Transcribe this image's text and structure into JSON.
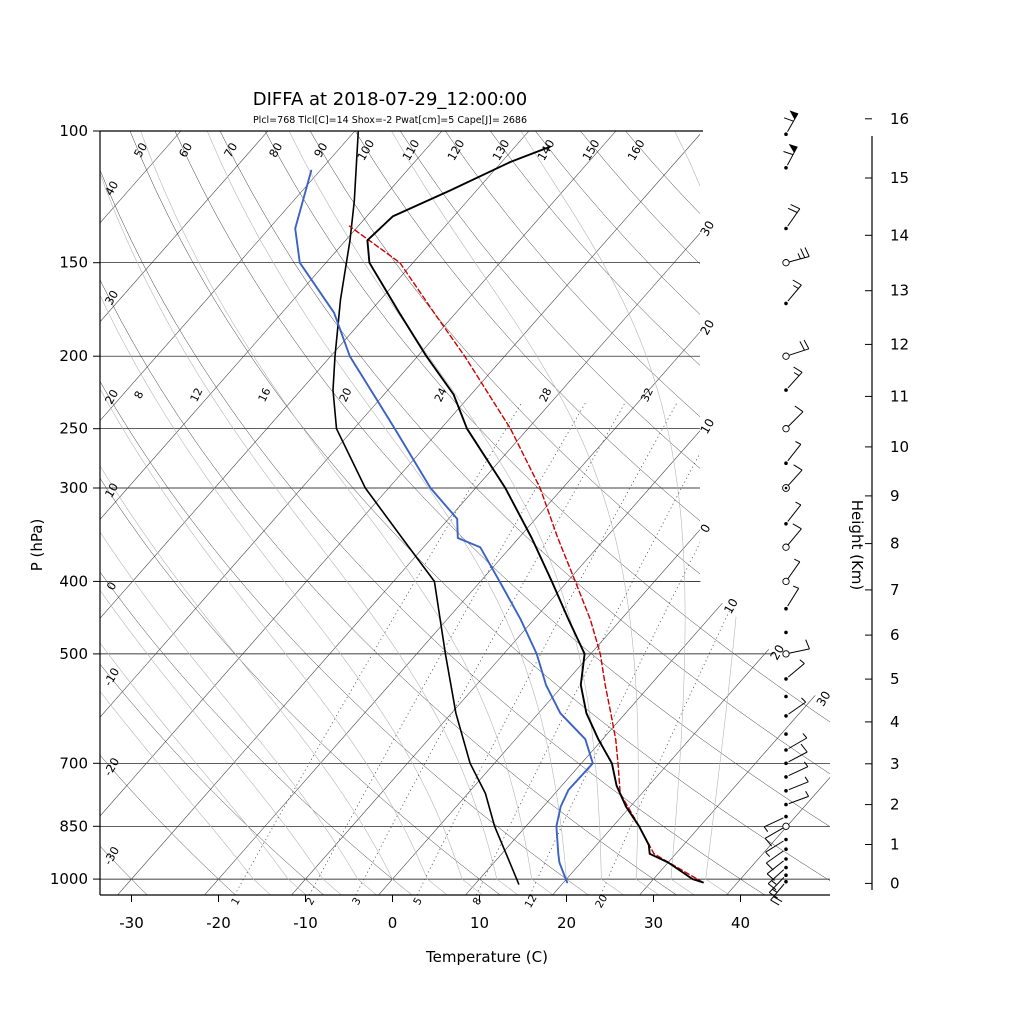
{
  "title": "DIFFA at 2018-07-29_12:00:00",
  "subtitle": "Plcl=768 Tlcl[C]=14 Shox=-2 Pwat[cm]=5 Cape[J]= 2686",
  "axes": {
    "pressure_label": "P (hPa)",
    "temperature_label": "Temperature (C)",
    "height_label": "Height (Km)",
    "pressure_ticks": [
      100,
      150,
      200,
      250,
      300,
      400,
      500,
      700,
      850,
      1000
    ],
    "temperature_ticks": [
      -30,
      -20,
      -10,
      0,
      10,
      20,
      30,
      40
    ],
    "height_ticks": [
      0,
      1,
      2,
      3,
      4,
      5,
      6,
      7,
      8,
      9,
      10,
      11,
      12,
      13,
      14,
      15,
      16
    ]
  },
  "grid": {
    "dry_adiabat_left_labels": [
      "40",
      "30",
      "20",
      "10",
      "0",
      "-10",
      "-20",
      "-30"
    ],
    "dry_adiabat_left_values": [
      40,
      30,
      20,
      10,
      0,
      -10,
      -20,
      -30
    ],
    "dry_adiabat_top_labels": [
      "50",
      "60",
      "70",
      "80",
      "90",
      "100",
      "110",
      "120",
      "130",
      "140",
      "150",
      "160"
    ],
    "dry_adiabat_top_values": [
      50,
      60,
      70,
      80,
      90,
      100,
      110,
      120,
      130,
      140,
      150,
      160
    ],
    "moist_adiabat_labels": [
      "8",
      "12",
      "16",
      "20",
      "24",
      "28",
      "32"
    ],
    "moist_adiabat_values": [
      8,
      12,
      16,
      20,
      24,
      28,
      32
    ],
    "mixing_ratio_labels": [
      "1",
      "2",
      "3",
      "5",
      "8",
      "12",
      "20"
    ],
    "mixing_ratio_values": [
      1,
      2,
      3,
      5,
      8,
      12,
      20
    ],
    "isotherm_right_labels": [
      "30",
      "20",
      "10",
      "0",
      "10",
      "20",
      "30"
    ],
    "isotherm_right_values": [
      -30,
      -20,
      -10,
      0,
      10,
      20,
      30
    ],
    "dry_adiabat_range": {
      "from": -30,
      "to": 160,
      "step": 10
    },
    "moist_adiabat_range": {
      "from": -16,
      "to": 36,
      "step": 4
    },
    "isotherm_range": {
      "from": -120,
      "to": 40,
      "step": 10
    }
  },
  "colors": {
    "temperature": "#000000",
    "dewpoint": "#3b62c4",
    "parcel": "#cc0000",
    "reference": "#000000",
    "subtitle": "#cc5500",
    "grid_dark": "#3a3a3a",
    "grid_light": "#b5b5b5",
    "mixing": "#555555"
  },
  "chart_data": {
    "type": "line",
    "subtype": "skew-t-log-p-sounding",
    "station": "DIFFA",
    "datetime": "2018-07-29_12:00:00",
    "pressure_range_hPa": [
      100,
      1050
    ],
    "indices": {
      "Plcl": 768,
      "Tlcl_C": 14,
      "Shox": -2,
      "Pwat_cm": 5,
      "Cape_J": 2686
    },
    "series": [
      {
        "name": "temperature",
        "style": "solid",
        "points_p_T": [
          [
            1010,
            36
          ],
          [
            1000,
            34.5
          ],
          [
            950,
            30
          ],
          [
            925,
            27
          ],
          [
            900,
            26
          ],
          [
            850,
            23
          ],
          [
            800,
            19.5
          ],
          [
            750,
            16.3
          ],
          [
            700,
            13.5
          ],
          [
            650,
            9.5
          ],
          [
            600,
            5.5
          ],
          [
            550,
            2
          ],
          [
            500,
            -0.7
          ],
          [
            450,
            -6
          ],
          [
            400,
            -11.8
          ],
          [
            350,
            -18.5
          ],
          [
            300,
            -26.6
          ],
          [
            250,
            -37
          ],
          [
            225,
            -42
          ],
          [
            200,
            -49
          ],
          [
            175,
            -56.5
          ],
          [
            150,
            -65
          ],
          [
            140,
            -67.5
          ],
          [
            130,
            -67
          ],
          [
            120,
            -63
          ],
          [
            110,
            -59
          ],
          [
            105,
            -56
          ]
        ]
      },
      {
        "name": "dewpoint",
        "style": "solid",
        "points_p_T": [
          [
            1010,
            20.4
          ],
          [
            950,
            17.5
          ],
          [
            925,
            16.5
          ],
          [
            850,
            13.5
          ],
          [
            800,
            12
          ],
          [
            760,
            11.2
          ],
          [
            700,
            11.3
          ],
          [
            650,
            8
          ],
          [
            600,
            2.5
          ],
          [
            550,
            -2
          ],
          [
            500,
            -6.2
          ],
          [
            450,
            -11.5
          ],
          [
            400,
            -17.8
          ],
          [
            360,
            -23.5
          ],
          [
            350,
            -27
          ],
          [
            330,
            -29
          ],
          [
            300,
            -35.2
          ],
          [
            250,
            -45.3
          ],
          [
            200,
            -57.8
          ],
          [
            175,
            -64
          ],
          [
            150,
            -73
          ],
          [
            135,
            -77
          ],
          [
            113,
            -81
          ]
        ]
      },
      {
        "name": "parcel",
        "style": "dashed",
        "points_p_T": [
          [
            1010,
            36
          ],
          [
            925,
            27.5
          ],
          [
            850,
            23
          ],
          [
            768,
            17.5
          ],
          [
            700,
            14.2
          ],
          [
            650,
            11.5
          ],
          [
            600,
            8.3
          ],
          [
            550,
            4.8
          ],
          [
            500,
            1.1
          ],
          [
            450,
            -3.5
          ],
          [
            400,
            -9.1
          ],
          [
            350,
            -15.5
          ],
          [
            300,
            -22.6
          ],
          [
            250,
            -32
          ],
          [
            200,
            -44.6
          ],
          [
            175,
            -52.5
          ],
          [
            150,
            -61.5
          ],
          [
            134,
            -71
          ]
        ]
      },
      {
        "name": "reference-adiabat",
        "style": "solid",
        "points_p_T": [
          [
            1015,
            15
          ],
          [
            950,
            11.8
          ],
          [
            850,
            6.4
          ],
          [
            768,
            2
          ],
          [
            700,
            -2.8
          ],
          [
            600,
            -9.5
          ],
          [
            500,
            -16.7
          ],
          [
            400,
            -25.3
          ],
          [
            350,
            -33.4
          ],
          [
            300,
            -42.7
          ],
          [
            250,
            -52
          ],
          [
            222,
            -56.3
          ],
          [
            200,
            -59.5
          ],
          [
            168,
            -64.6
          ],
          [
            140,
            -69.5
          ],
          [
            124,
            -73
          ],
          [
            100,
            -79.6
          ]
        ]
      }
    ],
    "winds": [
      {
        "p": 101,
        "s": "d",
        "a": 60,
        "b": 1,
        "f": true
      },
      {
        "p": 112,
        "s": "d",
        "a": 62,
        "b": 1,
        "f": true
      },
      {
        "p": 135,
        "s": "d",
        "a": 55,
        "b": 2,
        "f": false
      },
      {
        "p": 150,
        "s": "c",
        "a": 15,
        "b": 2.5,
        "f": false
      },
      {
        "p": 170,
        "s": "d",
        "a": 50,
        "b": 1.5,
        "f": false
      },
      {
        "p": 200,
        "s": "c",
        "a": 18,
        "b": 2,
        "f": false
      },
      {
        "p": 222,
        "s": "d",
        "a": 48,
        "b": 1.5,
        "f": false
      },
      {
        "p": 250,
        "s": "c",
        "a": 45,
        "b": 1,
        "f": false
      },
      {
        "p": 278,
        "s": "d",
        "a": 52,
        "b": 0.5,
        "f": false
      },
      {
        "p": 300,
        "s": "cd",
        "a": 48,
        "b": 1,
        "f": false
      },
      {
        "p": 335,
        "s": "d",
        "a": 52,
        "b": 0.5,
        "f": false
      },
      {
        "p": 360,
        "s": "c",
        "a": 50,
        "b": 1,
        "f": false
      },
      {
        "p": 400,
        "s": "c",
        "a": 55,
        "b": 0.5,
        "f": false
      },
      {
        "p": 435,
        "s": "d",
        "a": 58,
        "b": 0.5,
        "f": false
      },
      {
        "p": 468,
        "s": "d",
        "a": 0,
        "b": 0,
        "f": false
      },
      {
        "p": 500,
        "s": "c",
        "a": 12,
        "b": 1,
        "f": false
      },
      {
        "p": 540,
        "s": "d",
        "a": 40,
        "b": 0.5,
        "f": false
      },
      {
        "p": 570,
        "s": "d",
        "a": 0,
        "b": 0,
        "f": false
      },
      {
        "p": 605,
        "s": "d",
        "a": 35,
        "b": 0.5,
        "f": false
      },
      {
        "p": 640,
        "s": "d",
        "a": 0,
        "b": 0,
        "f": false
      },
      {
        "p": 672,
        "s": "d",
        "a": 30,
        "b": 0.5,
        "f": false
      },
      {
        "p": 700,
        "s": "d",
        "a": 28,
        "b": 1,
        "f": false
      },
      {
        "p": 730,
        "s": "d",
        "a": 25,
        "b": 0.5,
        "f": false
      },
      {
        "p": 762,
        "s": "d",
        "a": 22,
        "b": 0.5,
        "f": false
      },
      {
        "p": 795,
        "s": "d",
        "a": 20,
        "b": 0.5,
        "f": false
      },
      {
        "p": 825,
        "s": "d",
        "a": 205,
        "b": 0.5,
        "f": false
      },
      {
        "p": 850,
        "s": "c",
        "a": 210,
        "b": 1,
        "f": false
      },
      {
        "p": 885,
        "s": "d",
        "a": 212,
        "b": 0.5,
        "f": false
      },
      {
        "p": 912,
        "s": "d",
        "a": 215,
        "b": 1,
        "f": false
      },
      {
        "p": 940,
        "s": "d",
        "a": 218,
        "b": 1,
        "f": false
      },
      {
        "p": 965,
        "s": "d",
        "a": 222,
        "b": 1.5,
        "f": false
      },
      {
        "p": 988,
        "s": "d",
        "a": 226,
        "b": 1.5,
        "f": false
      },
      {
        "p": 1008,
        "s": "d",
        "a": 230,
        "b": 2,
        "f": false
      }
    ]
  }
}
